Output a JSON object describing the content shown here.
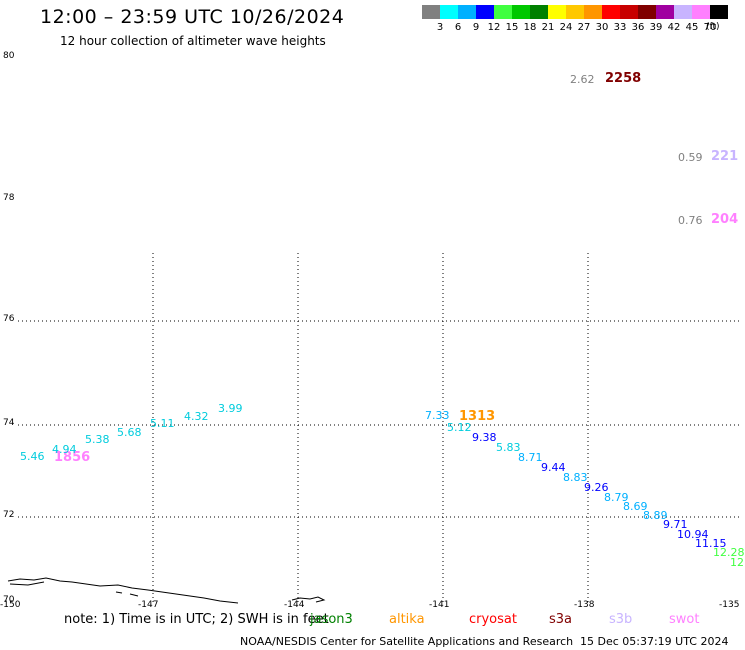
{
  "title": "12:00 – 23:59 UTC 10/26/2024",
  "subtitle": "12 hour collection of altimeter wave heights",
  "colorbar": {
    "unit": "(ft)",
    "swatches": [
      {
        "label": "3",
        "color": "#808080"
      },
      {
        "label": "6",
        "color": "#00ffff"
      },
      {
        "label": "9",
        "color": "#00b0ff"
      },
      {
        "label": "12",
        "color": "#0000ff"
      },
      {
        "label": "15",
        "color": "#40ff40"
      },
      {
        "label": "18",
        "color": "#00c800"
      },
      {
        "label": "21",
        "color": "#008000"
      },
      {
        "label": "24",
        "color": "#ffff00"
      },
      {
        "label": "27",
        "color": "#ffc800"
      },
      {
        "label": "30",
        "color": "#ff9600"
      },
      {
        "label": "33",
        "color": "#ff0000"
      },
      {
        "label": "36",
        "color": "#c80000"
      },
      {
        "label": "39",
        "color": "#800000"
      },
      {
        "label": "42",
        "color": "#a000a0"
      },
      {
        "label": "45",
        "color": "#c8b4ff"
      },
      {
        "label": "70",
        "color": "#ff80ff"
      },
      {
        "label": "",
        "color": "#000000"
      }
    ]
  },
  "lat_labels": [
    "80",
    "78",
    "76",
    "74",
    "72",
    "70"
  ],
  "lon_labels": [
    "-150",
    "-147",
    "-144",
    "-141",
    "-138",
    "-135"
  ],
  "annotations": [
    {
      "text": "2.62",
      "color": "#808080"
    },
    {
      "text": "2258",
      "color": "#800000"
    },
    {
      "text": "0.59",
      "color": "#808080"
    },
    {
      "text": "221",
      "color": "#c8b4ff"
    },
    {
      "text": "0.76",
      "color": "#808080"
    },
    {
      "text": "204",
      "color": "#ff80ff"
    },
    {
      "text": "1313",
      "color": "#ff9600"
    },
    {
      "text": "1856",
      "color": "#ff80ff"
    }
  ],
  "values": [
    {
      "text": "3.99",
      "color": "#00ccdd"
    },
    {
      "text": "4.32",
      "color": "#00ccdd"
    },
    {
      "text": "5.11",
      "color": "#00ccdd"
    },
    {
      "text": "5.68",
      "color": "#00ccdd"
    },
    {
      "text": "5.38",
      "color": "#00ccdd"
    },
    {
      "text": "4.94",
      "color": "#00ccdd"
    },
    {
      "text": "5.46",
      "color": "#00ccdd"
    },
    {
      "text": "7.33",
      "color": "#00b0ff"
    },
    {
      "text": "5.12",
      "color": "#00ccdd"
    },
    {
      "text": "9.38",
      "color": "#0000ff"
    },
    {
      "text": "5.83",
      "color": "#00ccdd"
    },
    {
      "text": "8.71",
      "color": "#00b0ff"
    },
    {
      "text": "9.44",
      "color": "#0000ff"
    },
    {
      "text": "8.83",
      "color": "#00b0ff"
    },
    {
      "text": "9.26",
      "color": "#0000ff"
    },
    {
      "text": "8.79",
      "color": "#00b0ff"
    },
    {
      "text": "8.69",
      "color": "#00b0ff"
    },
    {
      "text": "8.89",
      "color": "#00b0ff"
    },
    {
      "text": "9.71",
      "color": "#0000ff"
    },
    {
      "text": "10.94",
      "color": "#0000ff"
    },
    {
      "text": "11.15",
      "color": "#0000ff"
    },
    {
      "text": "12.28",
      "color": "#40ff40"
    },
    {
      "text": "12",
      "color": "#40ff40"
    }
  ],
  "footnote": "note: 1) Time is in UTC; 2) SWH is in feet",
  "satellites": [
    {
      "name": "jason3",
      "color": "#008000"
    },
    {
      "name": "altika",
      "color": "#ff9600"
    },
    {
      "name": "cryosat",
      "color": "#ff0000"
    },
    {
      "name": "s3a",
      "color": "#800000"
    },
    {
      "name": "s3b",
      "color": "#c8b4ff"
    },
    {
      "name": "swot",
      "color": "#ff80ff"
    }
  ],
  "credit": "NOAA/NESDIS Center for Satellite Applications and Research",
  "timestamp": "15 Dec 05:37:19 UTC 2024"
}
